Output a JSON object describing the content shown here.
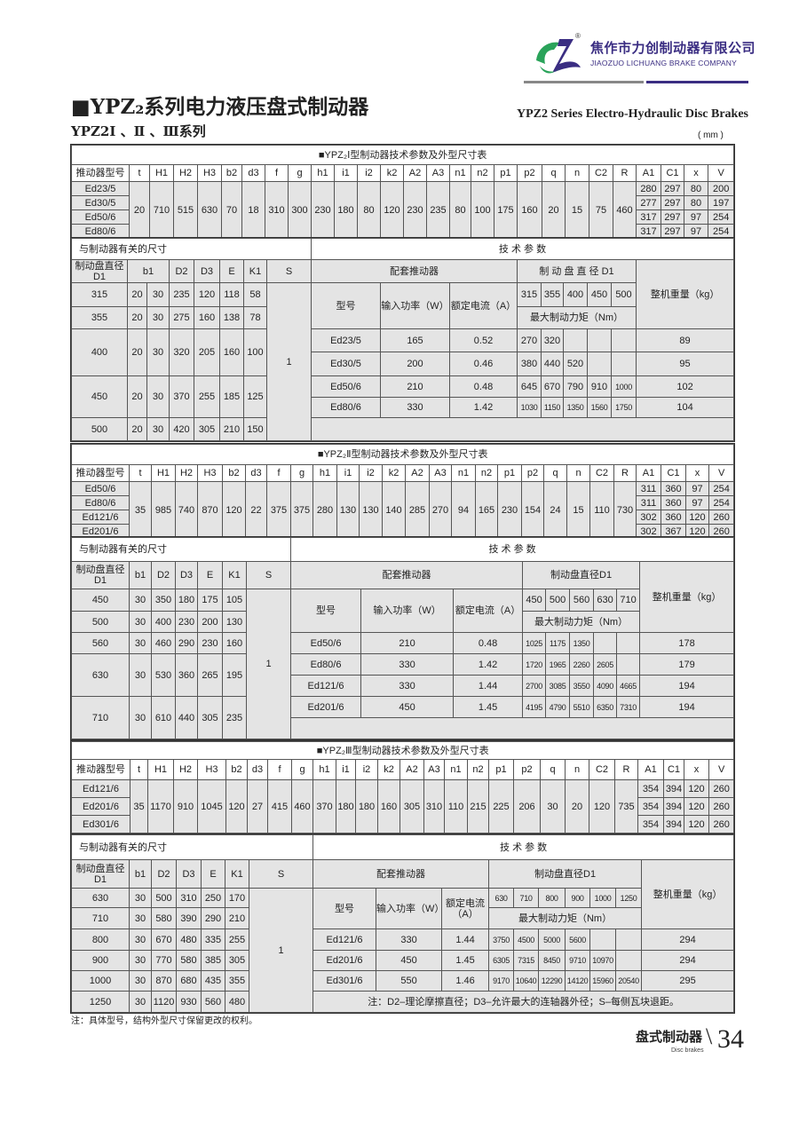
{
  "header": {
    "company_cn": "焦作市力创制动器有限公司",
    "company_en": "JIAOZUO LICHUANG BRAKE COMPANY",
    "logo_mark": "®",
    "colors": {
      "brand_navy": "#3a2d82",
      "brand_green": "#2aa35a",
      "rule_gray": "#888888"
    }
  },
  "title": "■YPZ₂系列电力液压盘式制动器",
  "title_en": "YPZ2 Series Electro-Hydraulic Disc Brakes",
  "subtitle": "YPZ2Ⅰ 、Ⅱ 、Ⅲ系列",
  "unit": "( mm )",
  "tables": [
    {
      "title": "■YPZ₂Ⅰ型制动器技术参数及外型尺寸表",
      "spec_headers": [
        "推动器型号",
        "t",
        "H1",
        "H2",
        "H3",
        "b2",
        "d3",
        "f",
        "g",
        "h1",
        "i1",
        "i2",
        "k2",
        "A2",
        "A3",
        "n1",
        "n2",
        "p1",
        "p2",
        "q",
        "n",
        "C2",
        "R",
        "A1",
        "C1",
        "x",
        "V"
      ],
      "models": [
        "Ed23/5",
        "Ed30/5",
        "Ed50/6",
        "Ed80/6"
      ],
      "shared": [
        "20",
        "710",
        "515",
        "630",
        "70",
        "18",
        "310",
        "300",
        "230",
        "180",
        "80",
        "120",
        "230",
        "235",
        "80",
        "100",
        "175",
        "160",
        "20",
        "15",
        "75",
        "460"
      ],
      "tail": [
        [
          "280",
          "297",
          "80",
          "200"
        ],
        [
          "277",
          "297",
          "80",
          "197"
        ],
        [
          "317",
          "297",
          "97",
          "254"
        ],
        [
          "317",
          "297",
          "97",
          "254"
        ]
      ],
      "section_left": "与制动器有关的尺寸",
      "section_right": "技  术  参  数",
      "dim_headers": [
        "制动盘直径D1",
        "b1",
        "D2",
        "D3",
        "E",
        "K1",
        "S"
      ],
      "dims": [
        {
          "D1": "315",
          "b1": [
            "20",
            "30"
          ],
          "D2": "235",
          "D3": "120",
          "E": "118",
          "K1": "58"
        },
        {
          "D1": "355",
          "b1": [
            "20",
            "30"
          ],
          "D2": "275",
          "D3": "160",
          "E": "138",
          "K1": "78"
        },
        {
          "D1": "400",
          "b1": [
            "20",
            "30"
          ],
          "D2": "320",
          "D3": "205",
          "E": "160",
          "K1": "100"
        },
        {
          "D1": "450",
          "b1": [
            "20",
            "30"
          ],
          "D2": "370",
          "D3": "255",
          "E": "185",
          "K1": "125"
        },
        {
          "D1": "500",
          "b1": [
            "20",
            "30"
          ],
          "D2": "420",
          "D3": "305",
          "E": "210",
          "K1": "150"
        }
      ],
      "S_value": "1",
      "tech": {
        "actuator_header": "配套推动器",
        "disc_header": "制 动 盘 直 径 D1",
        "weight_header": "整机重量（kg）",
        "model_label": "型号",
        "power_label": "输入功率（W）",
        "current_label": "额定电流（A）",
        "torque_label": "最大制动力矩（Nm）",
        "diameters": [
          "315",
          "355",
          "400",
          "450",
          "500"
        ],
        "rows": [
          {
            "model": "Ed23/5",
            "power": "165",
            "current": "0.52",
            "torques": [
              "270",
              "320",
              "",
              "",
              ""
            ],
            "weight": "89"
          },
          {
            "model": "Ed30/5",
            "power": "200",
            "current": "0.46",
            "torques": [
              "380",
              "440",
              "520",
              "",
              ""
            ],
            "weight": "95"
          },
          {
            "model": "Ed50/6",
            "power": "210",
            "current": "0.48",
            "torques": [
              "645",
              "670",
              "790",
              "910",
              "1000"
            ],
            "weight": "102"
          },
          {
            "model": "Ed80/6",
            "power": "330",
            "current": "1.42",
            "torques": [
              "1030",
              "1150",
              "1350",
              "1560",
              "1750"
            ],
            "weight": "104"
          }
        ],
        "note": ""
      }
    },
    {
      "title": "■YPZ₂Ⅱ型制动器技术参数及外型尺寸表",
      "spec_headers": [
        "推动器型号",
        "t",
        "H1",
        "H2",
        "H3",
        "b2",
        "d3",
        "f",
        "g",
        "h1",
        "i1",
        "i2",
        "k2",
        "A2",
        "A3",
        "n1",
        "n2",
        "p1",
        "p2",
        "q",
        "n",
        "C2",
        "R",
        "A1",
        "C1",
        "x",
        "V"
      ],
      "models": [
        "Ed50/6",
        "Ed80/6",
        "Ed121/6",
        "Ed201/6"
      ],
      "shared": [
        "35",
        "985",
        "740",
        "870",
        "120",
        "22",
        "375",
        "375",
        "280",
        "130",
        "130",
        "140",
        "285",
        "270",
        "94",
        "165",
        "230",
        "154",
        "24",
        "15",
        "110",
        "730"
      ],
      "tail": [
        [
          "311",
          "360",
          "97",
          "254"
        ],
        [
          "311",
          "360",
          "97",
          "254"
        ],
        [
          "302",
          "360",
          "120",
          "260"
        ],
        [
          "302",
          "367",
          "120",
          "260"
        ]
      ],
      "section_left": "与制动器有关的尺寸",
      "section_right": "技  术  参  数",
      "dim_headers": [
        "制动盘直径D1",
        "b1",
        "D2",
        "D3",
        "E",
        "K1",
        "S"
      ],
      "dims": [
        {
          "D1": "450",
          "b1": "30",
          "D2": "350",
          "D3": "180",
          "E": "175",
          "K1": "105"
        },
        {
          "D1": "500",
          "b1": "30",
          "D2": "400",
          "D3": "230",
          "E": "200",
          "K1": "130"
        },
        {
          "D1": "560",
          "b1": "30",
          "D2": "460",
          "D3": "290",
          "E": "230",
          "K1": "160"
        },
        {
          "D1": "630",
          "b1": "30",
          "D2": "530",
          "D3": "360",
          "E": "265",
          "K1": "195"
        },
        {
          "D1": "710",
          "b1": "30",
          "D2": "610",
          "D3": "440",
          "E": "305",
          "K1": "235"
        }
      ],
      "S_value": "1",
      "tech": {
        "actuator_header": "配套推动器",
        "disc_header": "制动盘直径D1",
        "weight_header": "整机重量（kg）",
        "model_label": "型号",
        "power_label": "输入功率（W）",
        "current_label": "额定电流（A）",
        "torque_label": "最大制动力矩（Nm）",
        "diameters": [
          "450",
          "500",
          "560",
          "630",
          "710"
        ],
        "rows": [
          {
            "model": "Ed50/6",
            "power": "210",
            "current": "0.48",
            "torques": [
              "1025",
              "1175",
              "1350",
              "",
              ""
            ],
            "weight": "178"
          },
          {
            "model": "Ed80/6",
            "power": "330",
            "current": "1.42",
            "torques": [
              "1720",
              "1965",
              "2260",
              "2605",
              ""
            ],
            "weight": "179"
          },
          {
            "model": "Ed121/6",
            "power": "330",
            "current": "1.44",
            "torques": [
              "2700",
              "3085",
              "3550",
              "4090",
              "4665"
            ],
            "weight": "194"
          },
          {
            "model": "Ed201/6",
            "power": "450",
            "current": "1.45",
            "torques": [
              "4195",
              "4790",
              "5510",
              "6350",
              "7310"
            ],
            "weight": "194"
          }
        ],
        "note": ""
      }
    },
    {
      "title": "■YPZ₂Ⅲ型制动器技术参数及外型尺寸表",
      "spec_headers": [
        "推动器型号",
        "t",
        "H1",
        "H2",
        "H3",
        "b2",
        "d3",
        "f",
        "g",
        "h1",
        "i1",
        "i2",
        "k2",
        "A2",
        "A3",
        "n1",
        "n2",
        "p1",
        "p2",
        "q",
        "n",
        "C2",
        "R",
        "A1",
        "C1",
        "x",
        "V"
      ],
      "models": [
        "Ed121/6",
        "Ed201/6",
        "Ed301/6"
      ],
      "shared": [
        "35",
        "1170",
        "910",
        "1045",
        "120",
        "27",
        "415",
        "460",
        "370",
        "180",
        "180",
        "160",
        "305",
        "310",
        "110",
        "215",
        "225",
        "206",
        "30",
        "20",
        "120",
        "735"
      ],
      "tail": [
        [
          "354",
          "394",
          "120",
          "260"
        ],
        [
          "354",
          "394",
          "120",
          "260"
        ],
        [
          "354",
          "394",
          "120",
          "260"
        ]
      ],
      "section_left": "与制动器有关的尺寸",
      "section_right": "技  术  参  数",
      "dim_headers": [
        "制动盘直径D1",
        "b1",
        "D2",
        "D3",
        "E",
        "K1",
        "S"
      ],
      "dims": [
        {
          "D1": "630",
          "b1": "30",
          "D2": "500",
          "D3": "310",
          "E": "250",
          "K1": "170"
        },
        {
          "D1": "710",
          "b1": "30",
          "D2": "580",
          "D3": "390",
          "E": "290",
          "K1": "210"
        },
        {
          "D1": "800",
          "b1": "30",
          "D2": "670",
          "D3": "480",
          "E": "335",
          "K1": "255"
        },
        {
          "D1": "900",
          "b1": "30",
          "D2": "770",
          "D3": "580",
          "E": "385",
          "K1": "305"
        },
        {
          "D1": "1000",
          "b1": "30",
          "D2": "870",
          "D3": "680",
          "E": "435",
          "K1": "355"
        },
        {
          "D1": "1250",
          "b1": "30",
          "D2": "1120",
          "D3": "930",
          "E": "560",
          "K1": "480"
        }
      ],
      "S_value": "1",
      "tech": {
        "actuator_header": "配套推动器",
        "disc_header": "制动盘直径D1",
        "weight_header": "整机重量（kg）",
        "model_label": "型号",
        "power_label": "输入功率（W）",
        "current_label": "额定电流（A）",
        "torque_label": "最大制动力矩（Nm）",
        "diameters": [
          "630",
          "710",
          "800",
          "900",
          "1000",
          "1250"
        ],
        "rows": [
          {
            "model": "Ed121/6",
            "power": "330",
            "current": "1.44",
            "torques": [
              "3750",
              "4500",
              "5000",
              "5600",
              "",
              ""
            ],
            "weight": "294"
          },
          {
            "model": "Ed201/6",
            "power": "450",
            "current": "1.45",
            "torques": [
              "6305",
              "7315",
              "8450",
              "9710",
              "10970",
              ""
            ],
            "weight": "294"
          },
          {
            "model": "Ed301/6",
            "power": "550",
            "current": "1.46",
            "torques": [
              "9170",
              "10640",
              "12290",
              "14120",
              "15960",
              "20540"
            ],
            "weight": "295"
          }
        ],
        "note": "注：D2–理论摩擦直径；D3–允许最大的连轴器外径；S–每侧瓦块退距。"
      }
    }
  ],
  "footnote": "注：具体型号，结构外型尺寸保留更改的权利。",
  "footer": {
    "section_cn": "盘式制动器",
    "section_en": "Disc brakes",
    "page_number": "34"
  }
}
